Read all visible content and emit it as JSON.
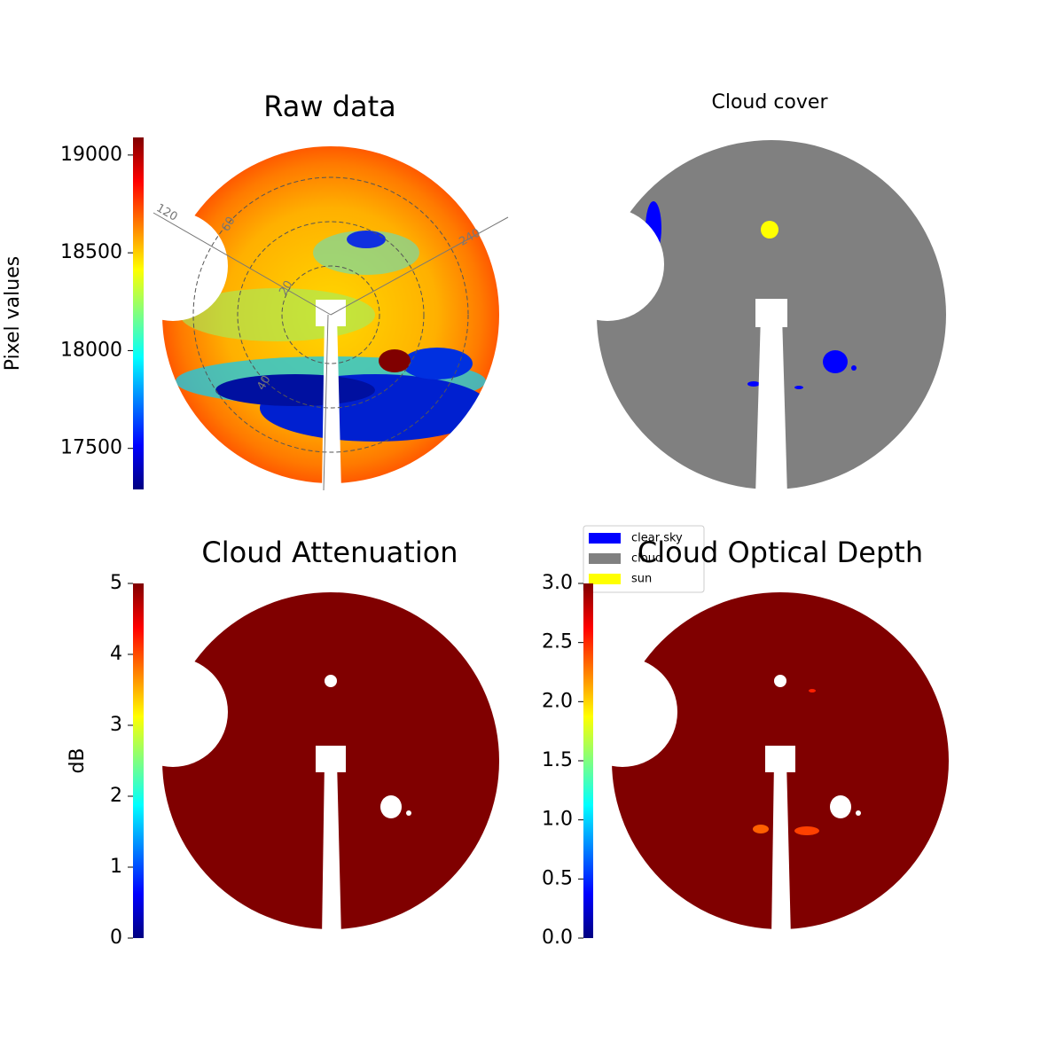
{
  "chart_data": [
    {
      "type": "image",
      "title": "Raw data",
      "colormap": "jet",
      "colorbar": {
        "label": "Pixel values",
        "ylim": [
          17290,
          19090
        ],
        "yticks": [
          17500,
          18000,
          18500,
          19000
        ]
      },
      "polar_labels": [
        "120",
        "240",
        "20",
        "40",
        "60"
      ]
    },
    {
      "type": "image",
      "title": "Cloud cover",
      "legend": [
        {
          "name": "clear sky",
          "color": "#0000ff"
        },
        {
          "name": "cloud",
          "color": "#808080"
        },
        {
          "name": "sun",
          "color": "#ffff00"
        }
      ]
    },
    {
      "type": "image",
      "title": "Cloud Attenuation",
      "colormap": "jet",
      "colorbar": {
        "label": "dB",
        "ylim": [
          0,
          5
        ],
        "yticks": [
          0,
          1,
          2,
          3,
          4,
          5
        ]
      }
    },
    {
      "type": "image",
      "title": "Cloud Optical Depth",
      "colormap": "jet",
      "colorbar": {
        "ylim": [
          0,
          3
        ],
        "yticks": [
          {
            "value": 0,
            "label": "0.0"
          },
          0.5,
          {
            "value": 1,
            "label": "1.0"
          },
          1.5,
          {
            "value": 2,
            "label": "2.0"
          },
          2.5,
          {
            "value": 3,
            "label": "3.0"
          }
        ]
      }
    }
  ]
}
